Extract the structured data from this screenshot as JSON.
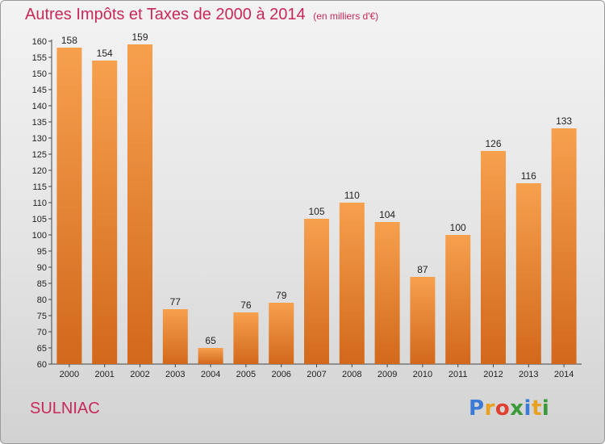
{
  "chart_data": {
    "type": "bar",
    "title": "Autres Impôts et Taxes de 2000 à 2014",
    "subtitle": "(en milliers d'€)",
    "categories": [
      "2000",
      "2001",
      "2002",
      "2003",
      "2004",
      "2005",
      "2006",
      "2007",
      "2008",
      "2009",
      "2010",
      "2011",
      "2012",
      "2013",
      "2014"
    ],
    "values": [
      158,
      154,
      159,
      77,
      65,
      76,
      79,
      105,
      110,
      104,
      87,
      100,
      126,
      116,
      133
    ],
    "ylim": [
      60,
      160
    ],
    "ytick_step": 5,
    "grid": false,
    "bar_color_top": "#f6a04e",
    "bar_color_bottom": "#d2681c"
  },
  "commune": "SULNIAC",
  "brand": {
    "letters": [
      {
        "ch": "P",
        "color": "#3a7bd5"
      },
      {
        "ch": "r",
        "color": "#e8a020"
      },
      {
        "ch": "o",
        "color": "#e04030"
      },
      {
        "ch": "x",
        "color": "#3a9a3a"
      },
      {
        "ch": "i",
        "color": "#3a7bd5"
      },
      {
        "ch": "t",
        "color": "#e8a020"
      },
      {
        "ch": "i",
        "color": "#3a9a3a"
      }
    ]
  }
}
